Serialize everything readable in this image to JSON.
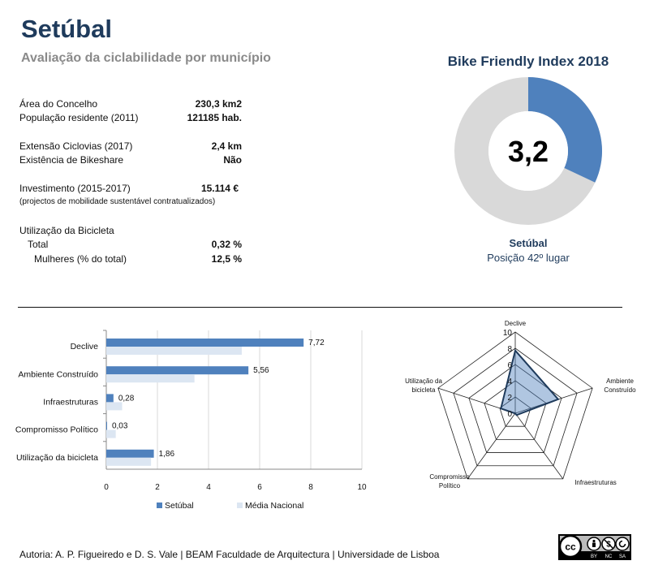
{
  "header": {
    "title": "Setúbal",
    "subtitle": "Avaliação da ciclabilidade por município"
  },
  "stats": [
    {
      "label": "Área do Concelho",
      "value": "230,3 km2"
    },
    {
      "label": "População residente (2011)",
      "value": "121185 hab."
    },
    {
      "label": "Extensão Ciclovias (2017)",
      "value": "2,4 km"
    },
    {
      "label": "Existência de Bikeshare",
      "value": "Não"
    },
    {
      "label": "Investimento (2015-2017)",
      "value": "15.114 €"
    },
    {
      "label": "(projectos de mobilidade sustentável contratualizados)",
      "value": ""
    },
    {
      "label": "Utilização da Bicicleta",
      "value": ""
    },
    {
      "label": "Total",
      "value": "0,32 %"
    },
    {
      "label": "Mulheres (% do total)",
      "value": "12,5 %"
    }
  ],
  "index": {
    "title": "Bike Friendly Index 2018",
    "value_label": "3,2",
    "value": 3.2,
    "max": 10,
    "city": "Setúbal",
    "position": "Posição 42º lugar",
    "colors": {
      "fill": "#4f81bd",
      "rest": "#d9d9d9"
    }
  },
  "chart_data": [
    {
      "type": "bar",
      "orientation": "horizontal",
      "categories": [
        "Declive",
        "Ambiente Construído",
        "Infraestruturas",
        "Compromisso Político",
        "Utilização da bicicleta"
      ],
      "series": [
        {
          "name": "Setúbal",
          "values": [
            7.72,
            5.56,
            0.28,
            0.03,
            1.86
          ],
          "labels": [
            "7,72",
            "5,56",
            "0,28",
            "0,03",
            "1,86"
          ],
          "color": "#4f81bd"
        },
        {
          "name": "Média Nacional",
          "values": [
            5.3,
            3.45,
            0.62,
            0.37,
            1.75
          ],
          "color": "#dce6f2"
        }
      ],
      "xlim": [
        0,
        10
      ],
      "xticks": [
        0,
        2,
        4,
        6,
        8,
        10
      ],
      "legend": "bottom"
    },
    {
      "type": "radar",
      "axes": [
        "Declive",
        "Ambiente Construído",
        "Infraestruturas",
        "Compromisso Político",
        "Utilização da bicicleta"
      ],
      "axis_labels": [
        [
          "Declive"
        ],
        [
          "Ambiente",
          "Construído"
        ],
        [
          "Infraestruturas"
        ],
        [
          "Compromisso",
          "Político"
        ],
        [
          "Utilização da",
          "bicicleta"
        ]
      ],
      "values": [
        7.72,
        5.56,
        0.28,
        0.03,
        1.86
      ],
      "rlim": [
        0,
        10
      ],
      "rticks": [
        0,
        2,
        4,
        6,
        8,
        10
      ],
      "color": "#4f81bd"
    }
  ],
  "footer": {
    "credit": "Autoria: A. P. Figueiredo e D. S. Vale | BEAM Faculdade de Arquitectura | Universidade de Lisboa",
    "license": {
      "cc": "cc",
      "by": "BY",
      "nc": "NC",
      "sa": "SA"
    }
  }
}
